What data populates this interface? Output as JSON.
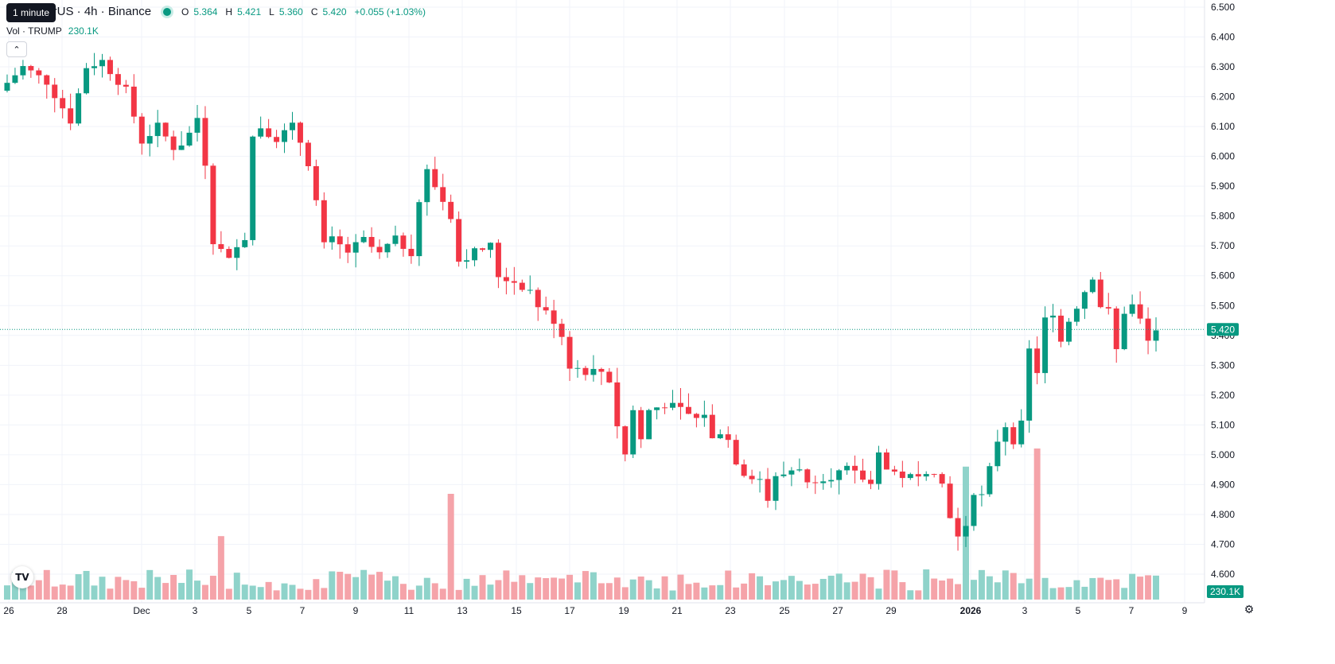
{
  "header": {
    "title": "P / TetherUS · 4h · Binance",
    "tooltip": "1 minute",
    "ohlc": [
      {
        "label": "O",
        "value": "5.364"
      },
      {
        "label": "H",
        "value": "5.421"
      },
      {
        "label": "L",
        "value": "5.360"
      },
      {
        "label": "C",
        "value": "5.420"
      }
    ],
    "change": "+0.055 (+1.03%)",
    "status_color": "#089981"
  },
  "volume_legend": {
    "label": "Vol · TRUMP",
    "value": "230.1K"
  },
  "collapse_icon": "chevron-up-icon",
  "logo_text": "TV",
  "colors": {
    "up": "#089981",
    "down": "#f23645",
    "vol_up": "#8fd3ca",
    "vol_down": "#f5a3a9"
  },
  "chart_data": {
    "type": "candlestick",
    "symbol": "TRUMP / TetherUS",
    "interval": "4h",
    "exchange": "Binance",
    "ylim": [
      4.55,
      6.5
    ],
    "y_ticks": [
      "6.500",
      "6.400",
      "6.300",
      "6.200",
      "6.100",
      "6.000",
      "5.900",
      "5.800",
      "5.700",
      "5.600",
      "5.500",
      "5.400",
      "5.300",
      "5.200",
      "5.100",
      "5.000",
      "4.900",
      "4.800",
      "4.700",
      "4.600"
    ],
    "x_ticks": [
      "26",
      "28",
      "Dec",
      "3",
      "5",
      "7",
      "9",
      "11",
      "13",
      "15",
      "17",
      "19",
      "21",
      "23",
      "25",
      "27",
      "29",
      "2026",
      "3",
      "5",
      "7",
      "9"
    ],
    "last_price": "5.420",
    "last_volume": "230.1K",
    "ohlc_path": [
      [
        0,
        6.22
      ],
      [
        3,
        6.3
      ],
      [
        6,
        6.25
      ],
      [
        9,
        6.12
      ],
      [
        11,
        6.3
      ],
      [
        13,
        6.32
      ],
      [
        16,
        6.22
      ],
      [
        18,
        6.05
      ],
      [
        20,
        6.1
      ],
      [
        22,
        6.03
      ],
      [
        23.5,
        6.05
      ],
      [
        25,
        6.13
      ],
      [
        26,
        5.98
      ],
      [
        27,
        5.72
      ],
      [
        29,
        5.65
      ],
      [
        29.5,
        5.7
      ],
      [
        31,
        5.73
      ],
      [
        31.5,
        6.05
      ],
      [
        33,
        6.1
      ],
      [
        35,
        6.06
      ],
      [
        37,
        6.1
      ],
      [
        38,
        6.05
      ],
      [
        39,
        5.98
      ],
      [
        40,
        5.85
      ],
      [
        41,
        5.7
      ],
      [
        42,
        5.72
      ],
      [
        44,
        5.68
      ],
      [
        46,
        5.72
      ],
      [
        48,
        5.67
      ],
      [
        49,
        5.7
      ],
      [
        50,
        5.72
      ],
      [
        52,
        5.68
      ],
      [
        53,
        5.85
      ],
      [
        54,
        5.95
      ],
      [
        55,
        5.9
      ],
      [
        56,
        5.85
      ],
      [
        57,
        5.8
      ],
      [
        58,
        5.65
      ],
      [
        60,
        5.68
      ],
      [
        62,
        5.7
      ],
      [
        63,
        5.6
      ],
      [
        65,
        5.58
      ],
      [
        67,
        5.55
      ],
      [
        68,
        5.5
      ],
      [
        70,
        5.45
      ],
      [
        70.5,
        5.5
      ],
      [
        71,
        5.4
      ],
      [
        72,
        5.3
      ],
      [
        74,
        5.28
      ],
      [
        76,
        5.28
      ],
      [
        77,
        5.25
      ],
      [
        78,
        5.1
      ],
      [
        79,
        5.0
      ],
      [
        80,
        5.15
      ],
      [
        81,
        5.05
      ],
      [
        82,
        5.15
      ],
      [
        84,
        5.17
      ],
      [
        86,
        5.15
      ],
      [
        88,
        5.12
      ],
      [
        89,
        5.14
      ],
      [
        90,
        5.05
      ],
      [
        91,
        5.08
      ],
      [
        92,
        5.05
      ],
      [
        93,
        4.98
      ],
      [
        94,
        4.94
      ],
      [
        96,
        4.92
      ],
      [
        97,
        4.85
      ],
      [
        98,
        4.92
      ],
      [
        100,
        4.95
      ],
      [
        101,
        4.96
      ],
      [
        102,
        4.9
      ],
      [
        103,
        4.92
      ],
      [
        105,
        4.93
      ],
      [
        107,
        4.95
      ],
      [
        109,
        4.92
      ],
      [
        110,
        4.9
      ],
      [
        111,
        5.02
      ],
      [
        112,
        4.95
      ],
      [
        114,
        4.93
      ],
      [
        116,
        4.92
      ],
      [
        117,
        4.95
      ],
      [
        118,
        4.95
      ],
      [
        119,
        4.9
      ],
      [
        120,
        4.8
      ],
      [
        121,
        4.72
      ],
      [
        122,
        4.75
      ],
      [
        123,
        4.88
      ],
      [
        124,
        4.86
      ],
      [
        125,
        4.95
      ],
      [
        126,
        5.05
      ],
      [
        127,
        5.1
      ],
      [
        128,
        5.05
      ],
      [
        129,
        5.1
      ],
      [
        130,
        5.35
      ],
      [
        131,
        5.28
      ],
      [
        132,
        5.45
      ],
      [
        133,
        5.48
      ],
      [
        134,
        5.38
      ],
      [
        135,
        5.45
      ],
      [
        136,
        5.5
      ],
      [
        137,
        5.55
      ],
      [
        138,
        5.6
      ],
      [
        139,
        5.5
      ],
      [
        140,
        5.48
      ],
      [
        141,
        5.35
      ],
      [
        142,
        5.48
      ],
      [
        143,
        5.5
      ],
      [
        144,
        5.45
      ],
      [
        145,
        5.38
      ],
      [
        146,
        5.42
      ]
    ],
    "candle_count": 146,
    "volume_spikes": [
      {
        "index": 27,
        "value": 0.42
      },
      {
        "index": 56,
        "value": 0.7
      },
      {
        "index": 121,
        "value": 0.88
      },
      {
        "index": 130,
        "value": 1.0
      }
    ]
  }
}
